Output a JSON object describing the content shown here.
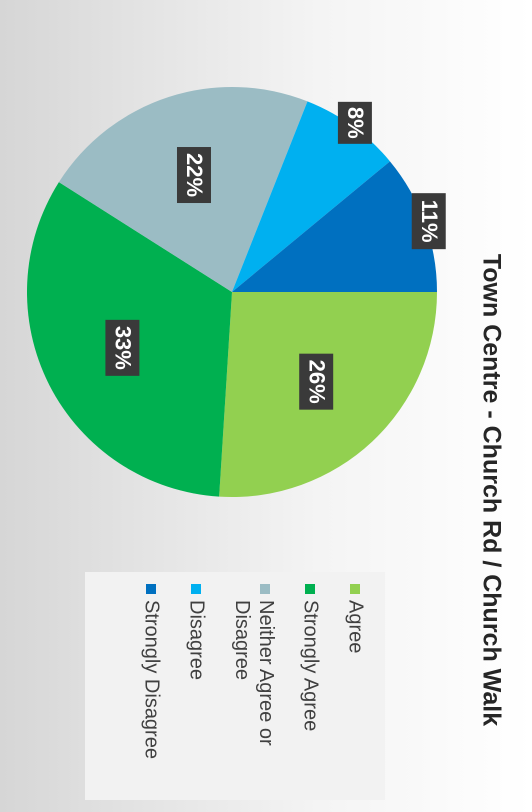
{
  "chart_data": {
    "type": "pie",
    "title": "Town Centre - Church Rd / Church Walk",
    "categories": [
      "Agree",
      "Strongly Agree",
      "Neither Agree or Disagree",
      "Disagree",
      "Strongly Disagree"
    ],
    "values": [
      26,
      33,
      22,
      8,
      11
    ],
    "value_labels": [
      "26%",
      "33%",
      "22%",
      "8%",
      "11%"
    ],
    "colors": [
      "#92d050",
      "#00b050",
      "#9bbcc4",
      "#00b0f0",
      "#0070c0"
    ],
    "legend": "right"
  }
}
